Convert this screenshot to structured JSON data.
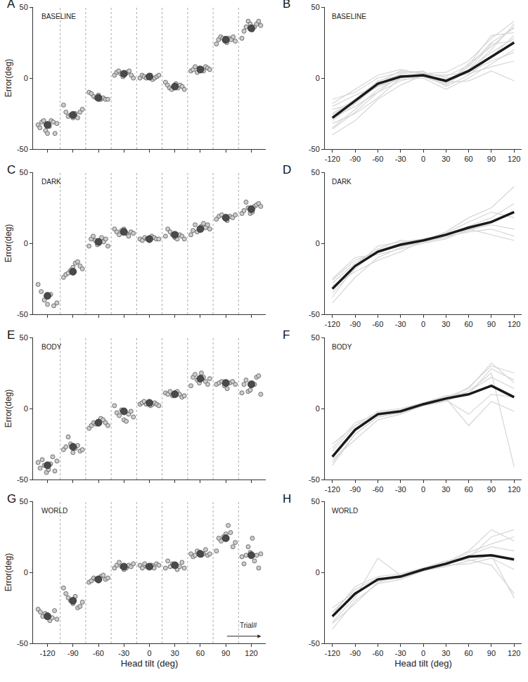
{
  "chart_data": [
    {
      "type": "scatter",
      "title": "BASELINE",
      "annotations": [
        "A"
      ],
      "ylabel": "Error(deg)",
      "x": [
        -120,
        -90,
        -60,
        -30,
        0,
        30,
        60,
        90,
        120
      ],
      "xlim": [
        -137,
        137
      ],
      "xticks": [
        -120,
        -90,
        -60,
        -30,
        0,
        30,
        60,
        90,
        120
      ],
      "ylim": [
        -50,
        50
      ],
      "yticks": [
        -50,
        0,
        50
      ],
      "tick_labels": "y",
      "color": "#cccccc",
      "marker": "circle",
      "trials": [
        [
          -33,
          -35,
          -31,
          -30,
          -37,
          -39,
          -34,
          -30,
          -31,
          -39,
          -32
        ],
        [
          -19,
          -24,
          -27,
          -26,
          -28,
          -25,
          -28,
          -24,
          -22
        ],
        [
          -10,
          -11,
          -13,
          -14,
          -12,
          -15,
          -14,
          -15,
          -15
        ],
        [
          2,
          4,
          5,
          3,
          1,
          3,
          4,
          5,
          2,
          0
        ],
        [
          0,
          2,
          1,
          0,
          1,
          2,
          -1,
          0,
          1,
          2
        ],
        [
          -3,
          -5,
          -7,
          -8,
          -6,
          -4,
          -7,
          -5,
          -6,
          -8
        ],
        [
          5,
          6,
          8,
          4,
          7,
          6,
          5,
          8,
          7,
          6
        ],
        [
          24,
          27,
          29,
          28,
          26,
          25,
          28,
          27,
          29,
          26
        ],
        [
          28,
          33,
          36,
          40,
          38,
          34,
          36,
          38,
          40,
          37
        ]
      ],
      "values": [
        -33,
        -26,
        -14,
        3,
        1,
        -6,
        6,
        27,
        35
      ]
    },
    {
      "type": "line",
      "title": "BASELINE",
      "annotations": [
        "B"
      ],
      "x": [
        -120,
        -90,
        -60,
        -30,
        0,
        30,
        60,
        90,
        120
      ],
      "xlim": [
        -130,
        130
      ],
      "xticks": [
        -120,
        -90,
        -60,
        -30,
        0,
        30,
        60,
        90,
        120
      ],
      "ylim": [
        -50,
        50
      ],
      "yticks": [
        -50,
        0,
        50
      ],
      "color": "#1a1a1a",
      "series": [
        {
          "color": "#d6d6d6",
          "values": [
            -40,
            -30,
            -15,
            -5,
            2,
            -2,
            5,
            20,
            38
          ]
        },
        {
          "color": "#d6d6d6",
          "values": [
            -35,
            -22,
            -8,
            0,
            3,
            -3,
            8,
            25,
            35
          ]
        },
        {
          "color": "#d6d6d6",
          "values": [
            -30,
            -18,
            -5,
            3,
            5,
            -6,
            2,
            15,
            30
          ]
        },
        {
          "color": "#d6d6d6",
          "values": [
            -25,
            -15,
            -2,
            2,
            1,
            -1,
            6,
            18,
            28
          ]
        },
        {
          "color": "#d6d6d6",
          "values": [
            -20,
            -12,
            -6,
            -1,
            0,
            -8,
            0,
            10,
            20
          ]
        },
        {
          "color": "#d6d6d6",
          "values": [
            -15,
            -10,
            0,
            4,
            3,
            1,
            9,
            30,
            32
          ]
        },
        {
          "color": "#d6d6d6",
          "values": [
            -28,
            -20,
            -10,
            -2,
            2,
            2,
            4,
            12,
            18
          ]
        },
        {
          "color": "#d6d6d6",
          "values": [
            -32,
            -25,
            -14,
            0,
            1,
            -4,
            10,
            22,
            36
          ]
        },
        {
          "color": "#d6d6d6",
          "values": [
            -22,
            -18,
            -3,
            5,
            4,
            0,
            3,
            8,
            12
          ]
        },
        {
          "color": "#d6d6d6",
          "values": [
            -26,
            -16,
            -6,
            1,
            2,
            -3,
            -2,
            5,
            -2
          ]
        },
        {
          "color": "#d6d6d6",
          "values": [
            -36,
            -24,
            -10,
            2,
            1,
            -5,
            6,
            24,
            26
          ]
        },
        {
          "color": "#d6d6d6",
          "values": [
            -18,
            -8,
            2,
            6,
            3,
            4,
            12,
            28,
            40
          ]
        }
      ],
      "values": [
        -28,
        -16,
        -4,
        1,
        2,
        -2,
        5,
        15,
        25
      ]
    },
    {
      "type": "scatter",
      "title": "DARK",
      "annotations": [
        "C"
      ],
      "ylabel": "Error(deg)",
      "x": [
        -120,
        -90,
        -60,
        -30,
        0,
        30,
        60,
        90,
        120
      ],
      "xlim": [
        -137,
        137
      ],
      "xticks": [
        -120,
        -90,
        -60,
        -30,
        0,
        30,
        60,
        90,
        120
      ],
      "ylim": [
        -50,
        50
      ],
      "yticks": [
        -50,
        0,
        50
      ],
      "tick_labels": "y",
      "color": "#cccccc",
      "marker": "circle",
      "trials": [
        [
          -29,
          -34,
          -40,
          -43,
          -36,
          -44,
          -42
        ],
        [
          -24,
          -22,
          -21,
          -19,
          -17,
          -14,
          -13,
          -16,
          -18
        ],
        [
          -2,
          3,
          5,
          2,
          -1,
          0,
          4,
          1,
          3,
          -2
        ],
        [
          10,
          8,
          6,
          9,
          10,
          7,
          5,
          8,
          7
        ],
        [
          3,
          2,
          4,
          3,
          2,
          5,
          4,
          3,
          3
        ],
        [
          5,
          10,
          8,
          6,
          4,
          3,
          6,
          5,
          3
        ],
        [
          6,
          9,
          13,
          8,
          10,
          12,
          14,
          11,
          13,
          10
        ],
        [
          17,
          19,
          20,
          18,
          16,
          19,
          18,
          20
        ],
        [
          21,
          23,
          29,
          25,
          21,
          22,
          26,
          27,
          28,
          26
        ]
      ],
      "values": [
        -37,
        -20,
        1,
        8,
        3,
        6,
        10,
        18,
        24
      ]
    },
    {
      "type": "line",
      "title": "DARK",
      "annotations": [
        "D"
      ],
      "x": [
        -120,
        -90,
        -60,
        -30,
        0,
        30,
        60,
        90,
        120
      ],
      "xlim": [
        -130,
        130
      ],
      "xticks": [
        -120,
        -90,
        -60,
        -30,
        0,
        30,
        60,
        90,
        120
      ],
      "ylim": [
        -50,
        50
      ],
      "yticks": [
        -50,
        0,
        50
      ],
      "color": "#1a1a1a",
      "series": [
        {
          "color": "#d6d6d6",
          "values": [
            -42,
            -24,
            -10,
            -3,
            2,
            8,
            18,
            25,
            40
          ]
        },
        {
          "color": "#d6d6d6",
          "values": [
            -35,
            -18,
            -5,
            0,
            3,
            6,
            12,
            18,
            28
          ]
        },
        {
          "color": "#d6d6d6",
          "values": [
            -28,
            -14,
            -4,
            2,
            1,
            4,
            9,
            14,
            22
          ]
        },
        {
          "color": "#d6d6d6",
          "values": [
            -25,
            -10,
            -8,
            -4,
            0,
            5,
            8,
            10,
            5
          ]
        },
        {
          "color": "#d6d6d6",
          "values": [
            -30,
            -20,
            -12,
            -6,
            2,
            7,
            15,
            22,
            18
          ]
        },
        {
          "color": "#d6d6d6",
          "values": [
            -38,
            -16,
            -2,
            1,
            3,
            6,
            10,
            6,
            2
          ]
        },
        {
          "color": "#d6d6d6",
          "values": [
            -26,
            -12,
            -6,
            -2,
            0,
            3,
            10,
            13,
            10
          ]
        }
      ],
      "values": [
        -32,
        -16,
        -6,
        -1,
        2,
        6,
        11,
        15,
        22
      ]
    },
    {
      "type": "scatter",
      "title": "BODY",
      "annotations": [
        "E"
      ],
      "ylabel": "Error(deg)",
      "x": [
        -120,
        -90,
        -60,
        -30,
        0,
        30,
        60,
        90,
        120
      ],
      "xlim": [
        -137,
        137
      ],
      "xticks": [
        -120,
        -90,
        -60,
        -30,
        0,
        30,
        60,
        90,
        120
      ],
      "ylim": [
        -50,
        50
      ],
      "yticks": [
        -50,
        0,
        50
      ],
      "tick_labels": "y",
      "color": "#cccccc",
      "marker": "circle",
      "trials": [
        [
          -38,
          -42,
          -36,
          -40,
          -45,
          -43,
          -39,
          -34,
          -44,
          -37
        ],
        [
          -29,
          -27,
          -20,
          -25,
          -31,
          -28,
          -26,
          -30,
          -29
        ],
        [
          -14,
          -12,
          -10,
          -11,
          -9,
          -7,
          -8,
          -10,
          -12
        ],
        [
          2,
          -3,
          -5,
          -1,
          -8,
          -9,
          -4,
          -2,
          -6
        ],
        [
          3,
          4,
          5,
          3,
          4,
          2,
          3,
          4,
          3,
          2
        ],
        [
          11,
          10,
          12,
          9,
          11,
          12,
          10,
          8,
          9
        ],
        [
          16,
          22,
          24,
          20,
          18,
          25,
          22,
          19,
          17,
          21
        ],
        [
          17,
          18,
          19,
          16,
          14,
          18,
          19,
          17
        ],
        [
          11,
          17,
          20,
          12,
          13,
          18,
          17,
          22,
          23,
          10
        ]
      ],
      "values": [
        -40,
        -27,
        -10,
        -2,
        4,
        10,
        21,
        18,
        17
      ]
    },
    {
      "type": "line",
      "title": "BODY",
      "annotations": [
        "F"
      ],
      "x": [
        -120,
        -90,
        -60,
        -30,
        0,
        30,
        60,
        90,
        120
      ],
      "xlim": [
        -130,
        130
      ],
      "xticks": [
        -120,
        -90,
        -60,
        -30,
        0,
        30,
        60,
        90,
        120
      ],
      "ylim": [
        -50,
        50
      ],
      "yticks": [
        -50,
        0,
        50
      ],
      "color": "#1a1a1a",
      "series": [
        {
          "color": "#d6d6d6",
          "values": [
            -40,
            -18,
            -6,
            -3,
            3,
            8,
            12,
            25,
            -41
          ]
        },
        {
          "color": "#d6d6d6",
          "values": [
            -36,
            -22,
            -8,
            -4,
            2,
            6,
            15,
            30,
            25
          ]
        },
        {
          "color": "#d6d6d6",
          "values": [
            -30,
            -12,
            -2,
            0,
            4,
            9,
            10,
            28,
            20
          ]
        },
        {
          "color": "#d6d6d6",
          "values": [
            -28,
            -10,
            -4,
            -2,
            3,
            7,
            -12,
            5,
            -2
          ]
        },
        {
          "color": "#d6d6d6",
          "values": [
            -38,
            -18,
            -6,
            -3,
            2,
            5,
            12,
            22,
            14
          ]
        },
        {
          "color": "#d6d6d6",
          "values": [
            -34,
            -14,
            -3,
            -1,
            4,
            8,
            14,
            32,
            18
          ]
        },
        {
          "color": "#d6d6d6",
          "values": [
            -25,
            -12,
            -5,
            -2,
            2,
            6,
            -4,
            10,
            8
          ]
        }
      ],
      "values": [
        -34,
        -15,
        -4,
        -2,
        3,
        7,
        10,
        16,
        8
      ]
    },
    {
      "type": "scatter",
      "title": "WORLD",
      "annotations": [
        "G",
        "Trial#"
      ],
      "ylabel": "Error(deg)",
      "xlabel": "Head tilt (deg)",
      "x": [
        -120,
        -90,
        -60,
        -30,
        0,
        30,
        60,
        90,
        120
      ],
      "xlim": [
        -137,
        137
      ],
      "xticks": [
        -120,
        -90,
        -60,
        -30,
        0,
        30,
        60,
        90,
        120
      ],
      "ylim": [
        -50,
        50
      ],
      "yticks": [
        -50,
        0,
        50
      ],
      "color": "#cccccc",
      "marker": "circle",
      "trials": [
        [
          -26,
          -28,
          -31,
          -29,
          -30,
          -34,
          -32,
          -27,
          -33
        ],
        [
          -11,
          -15,
          -18,
          -20,
          -22,
          -17,
          -25,
          -24,
          -21
        ],
        [
          -7,
          -6,
          -4,
          -5,
          -6,
          -3,
          -2,
          -5,
          -4
        ],
        [
          3,
          5,
          7,
          4,
          2,
          3,
          5,
          4,
          6
        ],
        [
          5,
          3,
          6,
          4,
          4,
          5,
          3,
          6,
          5
        ],
        [
          3,
          8,
          4,
          6,
          5,
          2,
          4,
          7,
          3
        ],
        [
          13,
          11,
          12,
          15,
          14,
          12,
          13,
          16,
          12,
          13
        ],
        [
          15,
          24,
          22,
          25,
          27,
          33,
          28,
          18,
          21
        ],
        [
          11,
          6,
          12,
          18,
          14,
          24,
          8,
          12,
          3,
          13
        ]
      ],
      "values": [
        -31,
        -20,
        -5,
        4,
        4,
        5,
        13,
        24,
        12
      ]
    },
    {
      "type": "line",
      "title": "WORLD",
      "annotations": [
        "H"
      ],
      "xlabel": "Head tilt (deg)",
      "x": [
        -120,
        -90,
        -60,
        -30,
        0,
        30,
        60,
        90,
        120
      ],
      "xlim": [
        -130,
        130
      ],
      "xticks": [
        -120,
        -90,
        -60,
        -30,
        0,
        30,
        60,
        90,
        120
      ],
      "ylim": [
        -50,
        50
      ],
      "yticks": [
        -50,
        0,
        50
      ],
      "color": "#1a1a1a",
      "series": [
        {
          "color": "#d6d6d6",
          "values": [
            -40,
            -20,
            -8,
            -5,
            1,
            7,
            15,
            30,
            22
          ]
        },
        {
          "color": "#d6d6d6",
          "values": [
            -35,
            -18,
            10,
            -2,
            3,
            8,
            10,
            25,
            30
          ]
        },
        {
          "color": "#d6d6d6",
          "values": [
            -28,
            -12,
            -4,
            -3,
            2,
            5,
            12,
            18,
            15
          ]
        },
        {
          "color": "#d6d6d6",
          "values": [
            -25,
            -14,
            -6,
            -4,
            1,
            4,
            8,
            12,
            -18
          ]
        },
        {
          "color": "#d6d6d6",
          "values": [
            -32,
            -16,
            -5,
            -2,
            2,
            6,
            14,
            20,
            25
          ]
        },
        {
          "color": "#d6d6d6",
          "values": [
            -30,
            -10,
            -3,
            -1,
            3,
            7,
            9,
            5,
            -15
          ]
        },
        {
          "color": "#d6d6d6",
          "values": [
            -36,
            -22,
            -7,
            -3,
            1,
            5,
            6,
            10,
            2
          ]
        }
      ],
      "values": [
        -31,
        -15,
        -5,
        -3,
        2,
        6,
        11,
        12,
        9
      ]
    }
  ]
}
